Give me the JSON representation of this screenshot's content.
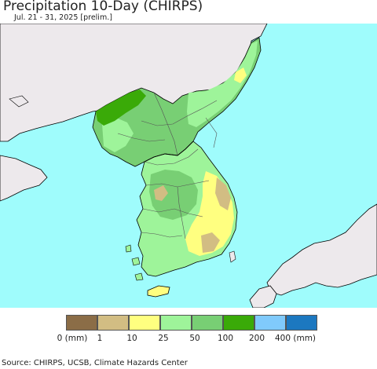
{
  "title": "Precipitation 10-Day (CHIRPS)",
  "subtitle": "Jul. 21 - 31, 2025 [prelim.]",
  "legend": {
    "colors": [
      "#8b6d47",
      "#d2bd83",
      "#ffff80",
      "#9ef49a",
      "#78cf74",
      "#3aaa08",
      "#80cafc",
      "#1c78c0"
    ],
    "labels": [
      "0 (mm)",
      "1",
      "10",
      "25",
      "50",
      "100",
      "200",
      "400 (mm)"
    ]
  },
  "source": "Source: CHIRPS, UCSB, Climate Hazards Center",
  "colors": {
    "ocean": "#9ffcfc",
    "land_no_data": "#ede9ec",
    "coast": "#000000",
    "border": "#555555"
  }
}
